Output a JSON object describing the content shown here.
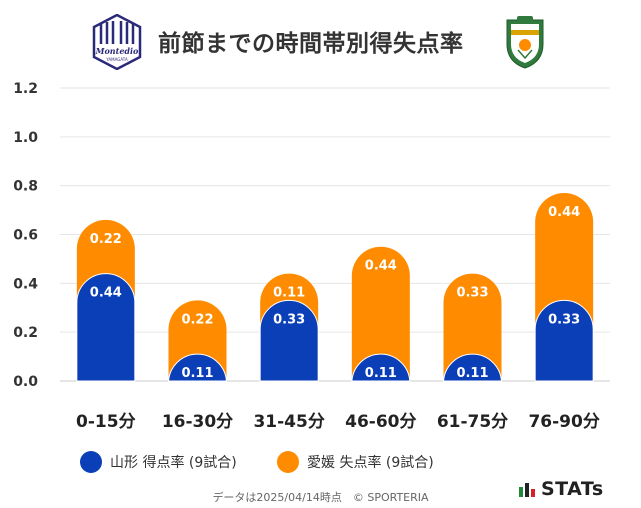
{
  "header": {
    "title": "前節までの時間帯別得失点率",
    "left_logo_text": "Montedio",
    "left_logo_subtext": "YAMAGATA"
  },
  "chart_data": {
    "type": "bar",
    "stacked": true,
    "categories": [
      "0-15分",
      "16-30分",
      "31-45分",
      "46-60分",
      "61-75分",
      "76-90分"
    ],
    "series": [
      {
        "name": "山形 得点率 (9試合)",
        "values": [
          0.44,
          0.11,
          0.33,
          0.11,
          0.11,
          0.33
        ],
        "value_labels": [
          "0.44",
          "0.11",
          "0.33",
          "0.11",
          "0.11",
          "0.33"
        ],
        "color": "#0a3fb8"
      },
      {
        "name": "愛媛 失点率 (9試合)",
        "values": [
          0.22,
          0.22,
          0.11,
          0.44,
          0.33,
          0.44
        ],
        "value_labels": [
          "0.22",
          "0.22",
          "0.11",
          "0.44",
          "0.33",
          "0.44"
        ],
        "color": "#ff8c00"
      }
    ],
    "ylim": [
      0,
      1.2
    ],
    "yticks": [
      "0.0",
      "0.2",
      "0.4",
      "0.6",
      "0.8",
      "1.0",
      "1.2"
    ],
    "grid": true,
    "legend_position": "bottom"
  },
  "legend": {
    "items": [
      {
        "label": "山形 得点率 (9試合)",
        "color": "#0a3fb8"
      },
      {
        "label": "愛媛 失点率 (9試合)",
        "color": "#ff8c00"
      }
    ]
  },
  "footer": {
    "note": "データは2025/04/14時点　© SPORTERIA",
    "brand": "STATs"
  }
}
